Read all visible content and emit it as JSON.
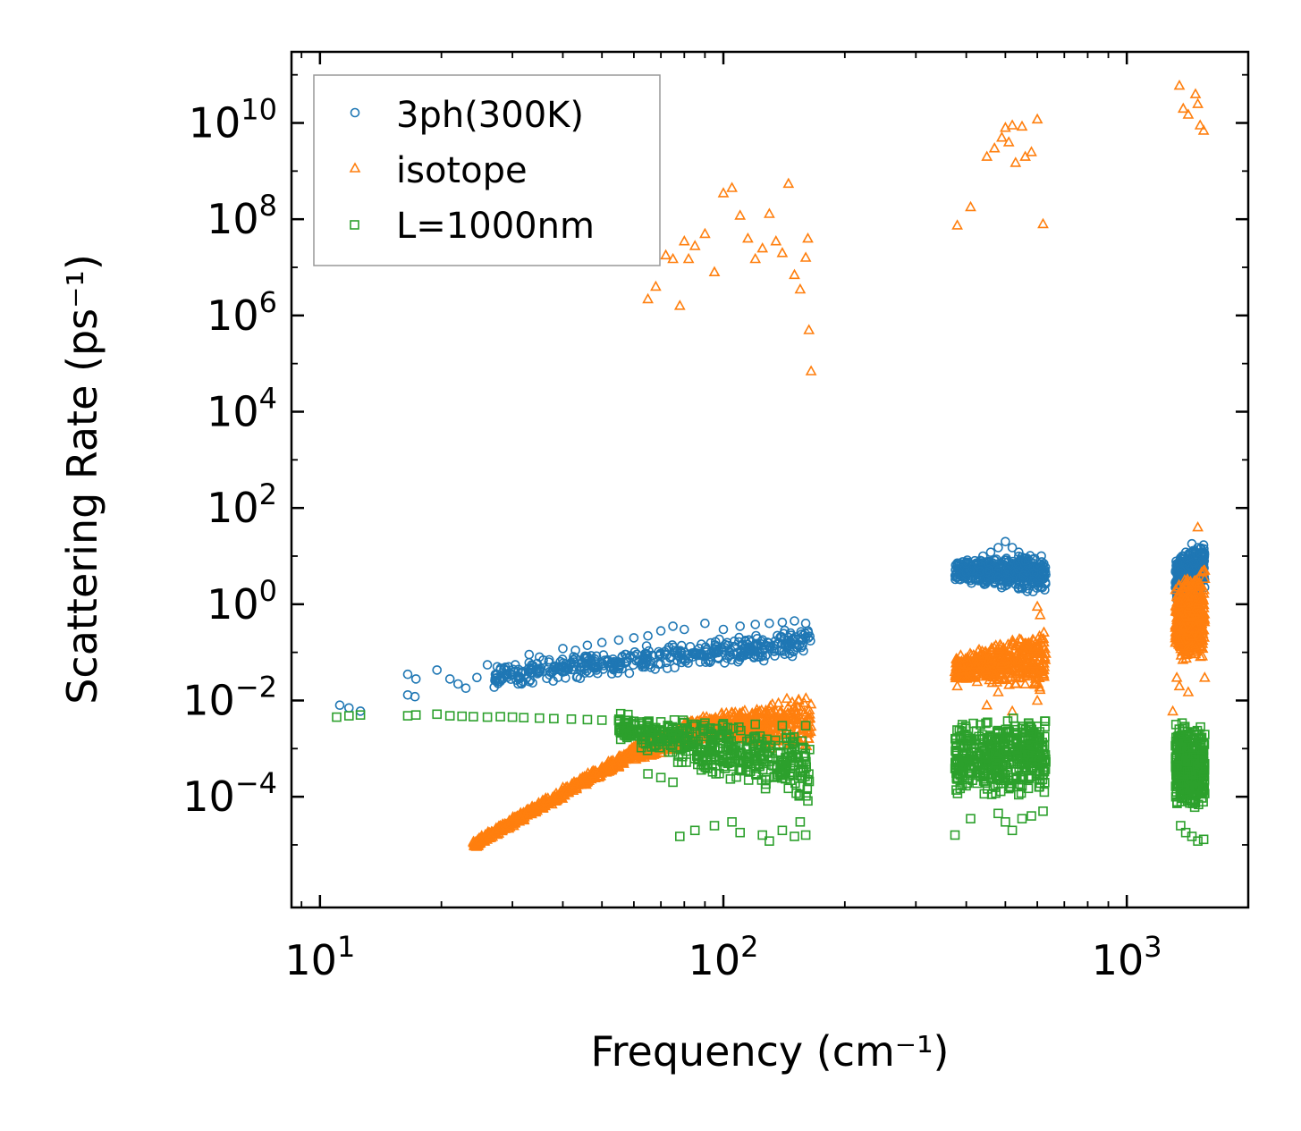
{
  "chart_data": {
    "type": "scatter",
    "title": "",
    "xlabel": "Frequency (cm⁻¹)",
    "ylabel": "Scattering Rate (ps⁻¹)",
    "xscale": "log",
    "yscale": "log",
    "xlim": [
      8.5,
      2000
    ],
    "ylim": [
      5e-07,
      300000000000
    ],
    "grid": false,
    "legend_position": "top-left",
    "x_ticks": [
      {
        "value": 10,
        "base": "10",
        "exp": "1"
      },
      {
        "value": 100,
        "base": "10",
        "exp": "2"
      },
      {
        "value": 1000,
        "base": "10",
        "exp": "3"
      }
    ],
    "y_ticks": [
      {
        "value": 0.0001,
        "base": "10",
        "exp": "−4"
      },
      {
        "value": 0.01,
        "base": "10",
        "exp": "−2"
      },
      {
        "value": 1,
        "base": "10",
        "exp": "0"
      },
      {
        "value": 100,
        "base": "10",
        "exp": "2"
      },
      {
        "value": 10000,
        "base": "10",
        "exp": "4"
      },
      {
        "value": 1000000,
        "base": "10",
        "exp": "6"
      },
      {
        "value": 100000000,
        "base": "10",
        "exp": "8"
      },
      {
        "value": 10000000000,
        "base": "10",
        "exp": "10"
      }
    ],
    "series": [
      {
        "name": "3ph(300K)",
        "marker": "circle",
        "color": "#1f77b4",
        "points": [
          [
            11.2,
            0.008
          ],
          [
            11.8,
            0.007
          ],
          [
            12.6,
            0.006
          ],
          [
            16.5,
            0.035
          ],
          [
            17.3,
            0.028
          ],
          [
            16.5,
            0.013
          ],
          [
            17.2,
            0.012
          ],
          [
            19.5,
            0.043
          ],
          [
            21,
            0.028
          ],
          [
            22,
            0.022
          ],
          [
            23,
            0.018
          ],
          [
            24.5,
            0.03
          ],
          [
            26,
            0.055
          ],
          [
            27.5,
            0.05
          ],
          [
            29,
            0.042
          ],
          [
            30.5,
            0.055
          ],
          [
            28,
            0.025
          ],
          [
            31,
            0.022
          ],
          [
            33,
            0.09
          ],
          [
            35,
            0.08
          ],
          [
            37,
            0.07
          ],
          [
            40,
            0.12
          ],
          [
            43,
            0.11
          ],
          [
            46,
            0.14
          ],
          [
            50,
            0.16
          ],
          [
            55,
            0.18
          ],
          [
            60,
            0.2
          ],
          [
            65,
            0.22
          ],
          [
            70,
            0.28
          ],
          [
            75,
            0.35
          ],
          [
            80,
            0.3
          ],
          [
            90,
            0.4
          ],
          [
            100,
            0.3
          ],
          [
            110,
            0.35
          ],
          [
            120,
            0.38
          ],
          [
            130,
            0.4
          ],
          [
            140,
            0.42
          ],
          [
            150,
            0.45
          ],
          [
            160,
            0.4
          ],
          [
            380,
            5.5
          ],
          [
            400,
            7
          ],
          [
            420,
            8
          ],
          [
            440,
            10
          ],
          [
            460,
            12
          ],
          [
            480,
            15
          ],
          [
            500,
            20
          ],
          [
            520,
            15
          ],
          [
            540,
            12
          ],
          [
            560,
            8
          ],
          [
            580,
            3
          ],
          [
            600,
            6
          ],
          [
            620,
            5
          ],
          [
            1330,
            2
          ],
          [
            1360,
            5
          ],
          [
            1400,
            12
          ],
          [
            1450,
            18
          ],
          [
            1500,
            15
          ],
          [
            1550,
            17
          ]
        ],
        "bands": [
          {
            "x": [
              27,
              165
            ],
            "y_low": [
              0.018,
              0.08
            ],
            "y_high": [
              0.06,
              0.35
            ]
          },
          {
            "x": [
              375,
              630
            ],
            "y_low": [
              3,
              1.5
            ],
            "y_high": [
              8,
              12
            ]
          },
          {
            "x": [
              1320,
              1560
            ],
            "y_low": [
              1,
              2
            ],
            "y_high": [
              10,
              18
            ]
          }
        ]
      },
      {
        "name": "isotope",
        "marker": "triangle",
        "color": "#ff7f0e",
        "points": [
          [
            65,
            2200000
          ],
          [
            68,
            4000000
          ],
          [
            72,
            18000000
          ],
          [
            75,
            15000000
          ],
          [
            78,
            1600000
          ],
          [
            80,
            35000000
          ],
          [
            82,
            15000000
          ],
          [
            85,
            28000000
          ],
          [
            90,
            50000000
          ],
          [
            95,
            8000000
          ],
          [
            100,
            350000000
          ],
          [
            105,
            450000000
          ],
          [
            110,
            120000000
          ],
          [
            115,
            40000000
          ],
          [
            120,
            15000000
          ],
          [
            125,
            25000000
          ],
          [
            130,
            130000000
          ],
          [
            135,
            35000000
          ],
          [
            140,
            20000000
          ],
          [
            145,
            550000000
          ],
          [
            150,
            7000000
          ],
          [
            155,
            3500000
          ],
          [
            160,
            16000000
          ],
          [
            163,
            500000
          ],
          [
            165,
            70000
          ],
          [
            162,
            40000000
          ],
          [
            380,
            75000000
          ],
          [
            410,
            180000000
          ],
          [
            450,
            2000000000
          ],
          [
            470,
            3000000000
          ],
          [
            490,
            5000000000
          ],
          [
            500,
            8000000000
          ],
          [
            510,
            4000000000
          ],
          [
            520,
            9000000000
          ],
          [
            530,
            1500000000
          ],
          [
            550,
            8500000000
          ],
          [
            560,
            2000000000
          ],
          [
            580,
            2500000000
          ],
          [
            600,
            12000000000
          ],
          [
            620,
            80000000
          ],
          [
            1350,
            60000000000
          ],
          [
            1380,
            20000000000
          ],
          [
            1420,
            15000000000
          ],
          [
            1480,
            40000000000
          ],
          [
            1500,
            25000000000
          ],
          [
            1520,
            9000000000
          ],
          [
            1550,
            7000000000
          ],
          [
            1500,
            40
          ],
          [
            1330,
            0.03
          ],
          [
            1420,
            0.015
          ],
          [
            1350,
            0.02
          ],
          [
            1560,
            0.03
          ],
          [
            1300,
            0.006
          ],
          [
            600,
            0.9
          ],
          [
            610,
            0.6
          ],
          [
            380,
            0.02
          ],
          [
            450,
            0.008
          ],
          [
            520,
            0.006
          ],
          [
            600,
            0.01
          ],
          [
            480,
            0.015
          ]
        ],
        "bands": [
          {
            "x": [
              24,
              60
            ],
            "y_low": [
              8e-06,
              0.0006
            ],
            "y_high": [
              1.3e-05,
              0.0012
            ]
          },
          {
            "x": [
              60,
              90
            ],
            "y_low": [
              0.0005,
              0.0015
            ],
            "y_high": [
              0.0015,
              0.004
            ]
          },
          {
            "x": [
              80,
              165
            ],
            "y_low": [
              0.002,
              0.0007
            ],
            "y_high": [
              0.004,
              0.015
            ]
          },
          {
            "x": [
              375,
              630
            ],
            "y_low": [
              0.025,
              0.015
            ],
            "y_high": [
              0.08,
              0.4
            ]
          },
          {
            "x": [
              1320,
              1560
            ],
            "y_low": [
              0.06,
              0.05
            ],
            "y_high": [
              3,
              8
            ]
          }
        ]
      },
      {
        "name": "L=1000nm",
        "marker": "square",
        "color": "#2ca02c",
        "points": [
          [
            11,
            0.0045
          ],
          [
            11.8,
            0.0048
          ],
          [
            12.6,
            0.005
          ],
          [
            16.5,
            0.0048
          ],
          [
            17.3,
            0.005
          ],
          [
            19.5,
            0.0052
          ],
          [
            21,
            0.0048
          ],
          [
            22.5,
            0.0047
          ],
          [
            24,
            0.0046
          ],
          [
            26,
            0.0045
          ],
          [
            28,
            0.0046
          ],
          [
            30,
            0.0045
          ],
          [
            32,
            0.0044
          ],
          [
            35,
            0.0043
          ],
          [
            38,
            0.0042
          ],
          [
            42,
            0.0041
          ],
          [
            46,
            0.004
          ],
          [
            50,
            0.0039
          ],
          [
            55,
            0.0038
          ],
          [
            60,
            0.0037
          ],
          [
            70,
            0.0036
          ],
          [
            80,
            0.0035
          ],
          [
            90,
            0.0034
          ],
          [
            100,
            0.0033
          ],
          [
            120,
            0.0032
          ],
          [
            140,
            0.003
          ],
          [
            160,
            0.003
          ],
          [
            78,
            1.5e-05
          ],
          [
            85,
            2e-05
          ],
          [
            95,
            2.5e-05
          ],
          [
            105,
            3e-05
          ],
          [
            110,
            1.8e-05
          ],
          [
            125,
            1.6e-05
          ],
          [
            130,
            1.2e-05
          ],
          [
            140,
            2e-05
          ],
          [
            150,
            1.5e-05
          ],
          [
            155,
            3e-05
          ],
          [
            160,
            1.6e-05
          ],
          [
            65,
            0.0003
          ],
          [
            70,
            0.00025
          ],
          [
            75,
            0.0002
          ],
          [
            375,
            1.6e-05
          ],
          [
            410,
            3.5e-05
          ],
          [
            480,
            4.5e-05
          ],
          [
            500,
            3e-05
          ],
          [
            520,
            2e-05
          ],
          [
            550,
            3.5e-05
          ],
          [
            580,
            4e-05
          ],
          [
            620,
            5e-05
          ],
          [
            1360,
            2.5e-05
          ],
          [
            1400,
            1.8e-05
          ],
          [
            1450,
            1.5e-05
          ],
          [
            1500,
            1.2e-05
          ],
          [
            1550,
            1.3e-05
          ]
        ],
        "bands": [
          {
            "x": [
              55,
              165
            ],
            "y_low": [
              0.0012,
              6e-05
            ],
            "y_high": [
              0.006,
              0.003
            ]
          },
          {
            "x": [
              375,
              630
            ],
            "y_low": [
              0.0001,
              0.0001
            ],
            "y_high": [
              0.004,
              0.005
            ]
          },
          {
            "x": [
              1320,
              1560
            ],
            "y_low": [
              5e-05,
              5e-05
            ],
            "y_high": [
              0.004,
              0.003
            ]
          }
        ]
      }
    ]
  }
}
